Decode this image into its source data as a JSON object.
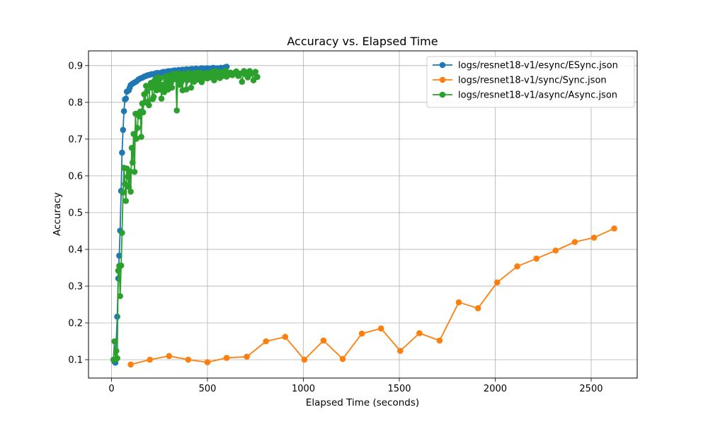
{
  "chart_data": {
    "type": "line",
    "title": "Accuracy vs. Elapsed Time",
    "xlabel": "Elapsed Time (seconds)",
    "ylabel": "Accuracy",
    "xlim": [
      -120,
      2740
    ],
    "ylim": [
      0.05,
      0.94
    ],
    "xticks": [
      0,
      500,
      1000,
      1500,
      2000,
      2500
    ],
    "yticks": [
      0.1,
      0.2,
      0.3,
      0.4,
      0.5,
      0.6,
      0.7,
      0.8,
      0.9
    ],
    "grid": true,
    "legend_position": "top-right",
    "series": [
      {
        "name": "logs/resnet18-v1/esync/ESync.json",
        "color": "#1f77b4",
        "x": [
          15,
          20,
          30,
          35,
          40,
          45,
          50,
          55,
          60,
          65,
          70,
          75,
          80,
          90,
          95,
          100,
          110,
          120,
          130,
          140,
          150,
          160,
          170,
          180,
          190,
          200,
          210,
          220,
          230,
          240,
          250,
          260,
          270,
          280,
          290,
          300,
          310,
          320,
          330,
          340,
          350,
          360,
          370,
          380,
          390,
          400,
          410,
          420,
          430,
          440,
          450,
          460,
          470,
          480,
          490,
          500,
          510,
          520,
          530,
          540,
          550,
          560,
          570,
          580,
          590,
          600
        ],
        "values": [
          0.095,
          0.092,
          0.217,
          0.321,
          0.383,
          0.451,
          0.559,
          0.663,
          0.725,
          0.776,
          0.808,
          0.81,
          0.829,
          0.833,
          0.84,
          0.847,
          0.851,
          0.854,
          0.857,
          0.862,
          0.865,
          0.867,
          0.87,
          0.872,
          0.874,
          0.875,
          0.877,
          0.876,
          0.879,
          0.88,
          0.879,
          0.881,
          0.883,
          0.882,
          0.884,
          0.885,
          0.884,
          0.886,
          0.887,
          0.886,
          0.888,
          0.887,
          0.889,
          0.888,
          0.89,
          0.889,
          0.89,
          0.891,
          0.889,
          0.892,
          0.89,
          0.891,
          0.893,
          0.891,
          0.892,
          0.893,
          0.891,
          0.892,
          0.894,
          0.89,
          0.893,
          0.891,
          0.894,
          0.892,
          0.895,
          0.897
        ]
      },
      {
        "name": "logs/resnet18-v1/sync/Sync.json",
        "color": "#ff7f0e",
        "x": [
          100,
          200,
          300,
          400,
          500,
          600,
          705,
          805,
          905,
          1005,
          1105,
          1205,
          1305,
          1405,
          1505,
          1605,
          1710,
          1810,
          1910,
          2010,
          2115,
          2215,
          2315,
          2415,
          2515,
          2620
        ],
        "values": [
          0.087,
          0.1,
          0.11,
          0.1,
          0.093,
          0.105,
          0.108,
          0.15,
          0.162,
          0.1,
          0.152,
          0.102,
          0.171,
          0.185,
          0.124,
          0.172,
          0.152,
          0.256,
          0.24,
          0.31,
          0.354,
          0.375,
          0.397,
          0.42,
          0.432,
          0.457
        ]
      },
      {
        "name": "logs/resnet18-v1/async/Async.json",
        "color": "#2ca02c",
        "x": [
          10,
          15,
          20,
          25,
          30,
          35,
          40,
          45,
          50,
          55,
          60,
          65,
          70,
          75,
          80,
          85,
          90,
          95,
          100,
          105,
          110,
          115,
          120,
          125,
          130,
          135,
          140,
          145,
          150,
          155,
          160,
          165,
          170,
          175,
          180,
          185,
          190,
          195,
          200,
          205,
          210,
          215,
          220,
          225,
          230,
          235,
          240,
          245,
          250,
          255,
          260,
          265,
          270,
          275,
          280,
          285,
          290,
          295,
          300,
          305,
          310,
          315,
          320,
          325,
          330,
          335,
          340,
          345,
          350,
          355,
          360,
          365,
          370,
          375,
          380,
          385,
          390,
          395,
          400,
          405,
          410,
          415,
          420,
          425,
          430,
          435,
          440,
          445,
          450,
          455,
          460,
          465,
          470,
          475,
          480,
          485,
          490,
          495,
          500,
          505,
          510,
          515,
          520,
          525,
          530,
          535,
          540,
          545,
          550,
          555,
          560,
          565,
          570,
          575,
          580,
          585,
          590,
          595,
          600,
          610,
          620,
          630,
          640,
          650,
          660,
          670,
          680,
          690,
          700,
          710,
          720,
          730,
          740,
          750,
          760
        ],
        "values": [
          0.1,
          0.15,
          0.1,
          0.124,
          0.104,
          0.342,
          0.355,
          0.273,
          0.356,
          0.445,
          0.555,
          0.622,
          0.578,
          0.532,
          0.62,
          0.598,
          0.57,
          0.612,
          0.557,
          0.676,
          0.636,
          0.714,
          0.611,
          0.769,
          0.701,
          0.73,
          0.77,
          0.762,
          0.775,
          0.706,
          0.797,
          0.773,
          0.822,
          0.8,
          0.845,
          0.83,
          0.802,
          0.792,
          0.845,
          0.853,
          0.84,
          0.809,
          0.815,
          0.86,
          0.845,
          0.833,
          0.868,
          0.852,
          0.835,
          0.865,
          0.81,
          0.848,
          0.838,
          0.828,
          0.87,
          0.858,
          0.848,
          0.835,
          0.873,
          0.86,
          0.853,
          0.84,
          0.876,
          0.863,
          0.868,
          0.878,
          0.778,
          0.86,
          0.878,
          0.848,
          0.868,
          0.856,
          0.833,
          0.877,
          0.866,
          0.872,
          0.835,
          0.86,
          0.88,
          0.868,
          0.873,
          0.84,
          0.87,
          0.878,
          0.856,
          0.866,
          0.88,
          0.875,
          0.862,
          0.87,
          0.881,
          0.868,
          0.855,
          0.876,
          0.872,
          0.866,
          0.879,
          0.87,
          0.865,
          0.878,
          0.88,
          0.872,
          0.868,
          0.882,
          0.874,
          0.86,
          0.885,
          0.878,
          0.87,
          0.877,
          0.882,
          0.866,
          0.88,
          0.878,
          0.872,
          0.884,
          0.876,
          0.886,
          0.87,
          0.875,
          0.881,
          0.874,
          0.879,
          0.884,
          0.872,
          0.878,
          0.856,
          0.885,
          0.876,
          0.868,
          0.885,
          0.878,
          0.86,
          0.883,
          0.869
        ]
      }
    ]
  }
}
